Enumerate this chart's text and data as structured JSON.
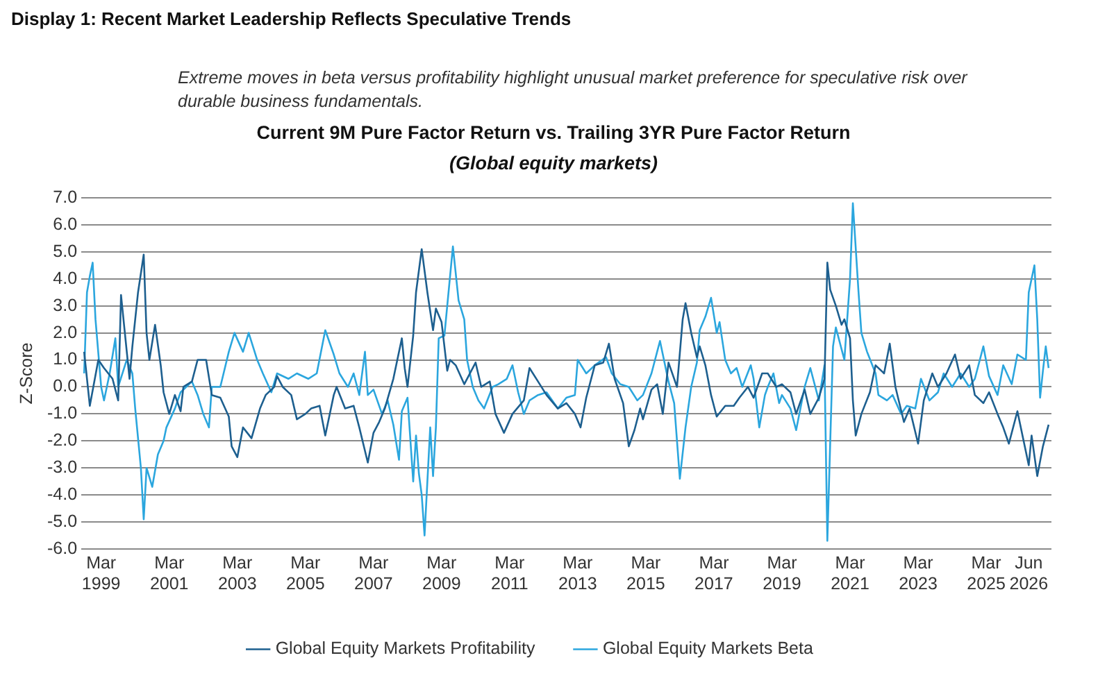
{
  "chart_data": {
    "type": "line",
    "title": "Display 1: Recent Market Leadership Reflects Speculative Trends",
    "subtitle": "Current 9M Pure Factor Return vs. Trailing 3YR Pure Factor Return",
    "annotations": [
      "Extreme moves in beta versus profitability highlight unusual market preference for speculative risk over durable business fundamentals.",
      "(Global equity markets)"
    ],
    "ylabel": "Z-Score",
    "xlim": [
      "1998-08",
      "2027-02"
    ],
    "xticks": [
      {
        "value": "1999-03",
        "label": "Mar 1999"
      },
      {
        "value": "2001-03",
        "label": "Mar 2001"
      },
      {
        "value": "2003-03",
        "label": "Mar 2003"
      },
      {
        "value": "2005-03",
        "label": "Mar 2005"
      },
      {
        "value": "2007-03",
        "label": "Mar 2007"
      },
      {
        "value": "2009-03",
        "label": "Mar 2009"
      },
      {
        "value": "2011-03",
        "label": "Mar 2011"
      },
      {
        "value": "2013-03",
        "label": "Mar 2013"
      },
      {
        "value": "2015-03",
        "label": "Mar 2015"
      },
      {
        "value": "2017-03",
        "label": "Mar 2017"
      },
      {
        "value": "2019-03",
        "label": "Mar 2019"
      },
      {
        "value": "2021-03",
        "label": "Mar 2021"
      },
      {
        "value": "2023-03",
        "label": "Mar 2023"
      },
      {
        "value": "2025-03",
        "label": "Mar 2025"
      },
      {
        "value": "2026-06",
        "label": "Jun 2026"
      }
    ],
    "ylim": [
      -6,
      7
    ],
    "yticks": [
      {
        "value": 7,
        "label": "7.0"
      },
      {
        "value": 6,
        "label": "6.0"
      },
      {
        "value": 5,
        "label": "5.0"
      },
      {
        "value": 4,
        "label": "4.0"
      },
      {
        "value": 3,
        "label": "3.0"
      },
      {
        "value": 2,
        "label": "2.0"
      },
      {
        "value": 1,
        "label": "1.0"
      },
      {
        "value": 0,
        "label": "0.0"
      },
      {
        "value": -1,
        "label": "-1.0"
      },
      {
        "value": -2,
        "label": "-2.0"
      },
      {
        "value": -3,
        "label": "-3.0"
      },
      {
        "value": -4,
        "label": "-4.0"
      },
      {
        "value": -5,
        "label": "-5.0"
      },
      {
        "value": -6,
        "label": "-6.0"
      }
    ],
    "grid": "y",
    "legend": "bottom",
    "series": [
      {
        "name": "Global Equity Markets Profitability",
        "color": "#1d5f8f",
        "x": [
          "1998-09",
          "1998-11",
          "1999-02",
          "1999-04",
          "1999-07",
          "1999-09",
          "1999-10",
          "2000-01",
          "2000-02",
          "2000-04",
          "2000-06",
          "2000-07",
          "2000-08",
          "2000-10",
          "2000-12",
          "2001-01",
          "2001-03",
          "2001-05",
          "2001-07",
          "2001-08",
          "2001-11",
          "2002-01",
          "2002-04",
          "2002-06",
          "2002-09",
          "2002-12",
          "2003-01",
          "2003-03",
          "2003-05",
          "2003-08",
          "2003-11",
          "2004-01",
          "2004-04",
          "2004-05",
          "2004-07",
          "2004-10",
          "2004-12",
          "2005-03",
          "2005-05",
          "2005-08",
          "2005-10",
          "2006-01",
          "2006-02",
          "2006-05",
          "2006-08",
          "2006-10",
          "2007-01",
          "2007-03",
          "2007-05",
          "2007-07",
          "2007-10",
          "2008-01",
          "2008-02",
          "2008-03",
          "2008-05",
          "2008-06",
          "2008-08",
          "2008-10",
          "2008-12",
          "2009-01",
          "2009-03",
          "2009-05",
          "2009-06",
          "2009-08",
          "2009-11",
          "2010-03",
          "2010-05",
          "2010-08",
          "2010-10",
          "2011-01",
          "2011-04",
          "2011-08",
          "2011-10",
          "2012-01",
          "2012-04",
          "2012-08",
          "2012-11",
          "2013-02",
          "2013-04",
          "2013-06",
          "2013-09",
          "2013-12",
          "2014-02",
          "2014-04",
          "2014-07",
          "2014-09",
          "2014-11",
          "2015-01",
          "2015-02",
          "2015-05",
          "2015-07",
          "2015-09",
          "2015-11",
          "2016-02",
          "2016-04",
          "2016-05",
          "2016-07",
          "2016-09",
          "2016-10",
          "2016-12",
          "2017-02",
          "2017-04",
          "2017-07",
          "2017-10",
          "2017-12",
          "2018-03",
          "2018-05",
          "2018-08",
          "2018-10",
          "2019-01",
          "2019-03",
          "2019-06",
          "2019-08",
          "2019-11",
          "2020-01",
          "2020-04",
          "2020-06",
          "2020-07",
          "2020-08",
          "2020-10",
          "2020-12",
          "2021-01",
          "2021-03",
          "2021-04",
          "2021-05",
          "2021-07",
          "2021-10",
          "2021-12",
          "2022-03",
          "2022-05",
          "2022-07",
          "2022-10",
          "2022-12",
          "2023-03",
          "2023-05",
          "2023-08",
          "2023-10",
          "2024-01",
          "2024-04",
          "2024-06",
          "2024-09",
          "2024-11",
          "2025-02",
          "2025-04",
          "2025-07",
          "2025-09",
          "2025-11",
          "2026-02",
          "2026-04",
          "2026-06",
          "2026-07",
          "2026-09",
          "2026-11",
          "2027-01"
        ],
        "values": [
          1.3,
          -0.7,
          1.0,
          0.7,
          0.3,
          -0.5,
          3.4,
          0.3,
          1.5,
          3.5,
          4.9,
          2.0,
          1.0,
          2.3,
          0.8,
          -0.2,
          -1.0,
          -0.3,
          -0.9,
          0.0,
          0.2,
          1.0,
          1.0,
          -0.3,
          -0.4,
          -1.1,
          -2.2,
          -2.6,
          -1.5,
          -1.9,
          -0.8,
          -0.3,
          0.0,
          0.4,
          0.0,
          -0.3,
          -1.2,
          -1.0,
          -0.8,
          -0.7,
          -1.8,
          -0.3,
          0.0,
          -0.8,
          -0.7,
          -1.5,
          -2.8,
          -1.7,
          -1.3,
          -0.8,
          0.3,
          1.8,
          0.7,
          0.0,
          1.9,
          3.5,
          5.1,
          3.5,
          2.1,
          2.9,
          2.4,
          0.6,
          1.0,
          0.8,
          0.1,
          0.9,
          0.0,
          0.2,
          -1.0,
          -1.7,
          -1.0,
          -0.5,
          0.7,
          0.2,
          -0.3,
          -0.8,
          -0.6,
          -1.0,
          -1.5,
          -0.4,
          0.8,
          0.9,
          1.6,
          0.3,
          -0.6,
          -2.2,
          -1.6,
          -0.8,
          -1.2,
          -0.1,
          0.1,
          -1.0,
          0.9,
          0.0,
          2.5,
          3.1,
          2.0,
          1.1,
          1.5,
          0.8,
          -0.3,
          -1.1,
          -0.7,
          -0.7,
          -0.4,
          0.0,
          -0.4,
          0.5,
          0.5,
          0.0,
          0.1,
          -0.2,
          -1.0,
          -0.1,
          -1.0,
          -0.4,
          0.3,
          4.6,
          3.6,
          3.0,
          2.3,
          2.5,
          1.8,
          -0.5,
          -1.8,
          -1.0,
          -0.2,
          0.8,
          0.5,
          1.6,
          0.0,
          -1.3,
          -0.8,
          -2.1,
          -0.5,
          0.5,
          0.0,
          0.5,
          1.2,
          0.3,
          0.8,
          -0.3,
          -0.6,
          -0.2,
          -1.0,
          -1.5,
          -2.1,
          -0.9,
          -1.9,
          -2.9,
          -1.8,
          -3.3,
          -2.2,
          -1.4
        ]
      },
      {
        "name": "Global Equity Markets Beta",
        "color": "#2ba6de",
        "x": [
          "1998-09",
          "1998-10",
          "1998-11",
          "1998-12",
          "1999-01",
          "1999-03",
          "1999-04",
          "1999-06",
          "1999-08",
          "1999-09",
          "1999-12",
          "2000-02",
          "2000-03",
          "2000-05",
          "2000-06",
          "2000-07",
          "2000-09",
          "2000-11",
          "2001-01",
          "2001-02",
          "2001-05",
          "2001-07",
          "2001-11",
          "2002-01",
          "2002-03",
          "2002-05",
          "2002-06",
          "2002-09",
          "2002-12",
          "2003-02",
          "2003-05",
          "2003-07",
          "2003-10",
          "2003-12",
          "2004-03",
          "2004-05",
          "2004-09",
          "2004-12",
          "2005-04",
          "2005-07",
          "2005-10",
          "2006-01",
          "2006-03",
          "2006-06",
          "2006-08",
          "2006-10",
          "2006-12",
          "2007-01",
          "2007-03",
          "2007-06",
          "2007-08",
          "2007-10",
          "2007-12",
          "2008-01",
          "2008-03",
          "2008-05",
          "2008-06",
          "2008-07",
          "2008-08",
          "2008-09",
          "2008-10",
          "2008-11",
          "2008-12",
          "2009-01",
          "2009-02",
          "2009-04",
          "2009-05",
          "2009-07",
          "2009-09",
          "2009-11",
          "2009-12",
          "2010-02",
          "2010-04",
          "2010-06",
          "2010-09",
          "2010-11",
          "2011-02",
          "2011-04",
          "2011-06",
          "2011-08",
          "2011-10",
          "2012-01",
          "2012-04",
          "2012-08",
          "2012-11",
          "2013-02",
          "2013-03",
          "2013-06",
          "2013-09",
          "2014-01",
          "2014-03",
          "2014-06",
          "2014-09",
          "2014-12",
          "2015-02",
          "2015-05",
          "2015-08",
          "2015-11",
          "2016-01",
          "2016-03",
          "2016-05",
          "2016-07",
          "2016-09",
          "2016-10",
          "2016-12",
          "2017-02",
          "2017-04",
          "2017-05",
          "2017-07",
          "2017-09",
          "2017-11",
          "2018-01",
          "2018-04",
          "2018-05",
          "2018-07",
          "2018-09",
          "2018-10",
          "2018-12",
          "2019-02",
          "2019-03",
          "2019-06",
          "2019-08",
          "2019-11",
          "2020-01",
          "2020-04",
          "2020-06",
          "2020-07",
          "2020-09",
          "2020-10",
          "2021-01",
          "2021-02",
          "2021-03",
          "2021-04",
          "2021-06",
          "2021-07",
          "2021-09",
          "2021-12",
          "2022-01",
          "2022-04",
          "2022-06",
          "2022-09",
          "2022-11",
          "2023-02",
          "2023-04",
          "2023-07",
          "2023-10",
          "2023-12",
          "2024-03",
          "2024-06",
          "2024-09",
          "2024-11",
          "2025-02",
          "2025-04",
          "2025-07",
          "2025-09",
          "2025-12",
          "2026-02",
          "2026-05",
          "2026-06",
          "2026-08",
          "2026-09",
          "2026-10",
          "2026-11",
          "2026-12",
          "2027-01"
        ],
        "values": [
          0.5,
          3.5,
          4.1,
          4.6,
          2.5,
          0.0,
          -0.5,
          0.5,
          1.8,
          0.0,
          1.0,
          0.5,
          -0.8,
          -3.0,
          -4.9,
          -3.0,
          -3.7,
          -2.5,
          -2.0,
          -1.5,
          -0.8,
          -0.2,
          0.2,
          -0.3,
          -1.0,
          -1.5,
          0.0,
          0.0,
          1.3,
          2.0,
          1.3,
          2.0,
          1.0,
          0.5,
          -0.2,
          0.5,
          0.3,
          0.5,
          0.3,
          0.5,
          2.1,
          1.2,
          0.5,
          0.0,
          0.5,
          -0.3,
          1.3,
          -0.3,
          -0.1,
          -1.0,
          -0.5,
          -1.4,
          -2.7,
          -0.9,
          -0.4,
          -3.5,
          -1.8,
          -3.2,
          -4.0,
          -5.5,
          -3.5,
          -1.5,
          -3.3,
          -1.5,
          1.8,
          1.9,
          3.0,
          5.2,
          3.2,
          2.5,
          1.0,
          0.0,
          -0.5,
          -0.8,
          0.0,
          0.1,
          0.3,
          0.8,
          -0.2,
          -1.0,
          -0.5,
          -0.3,
          -0.2,
          -0.8,
          -0.4,
          -0.3,
          1.0,
          0.5,
          0.8,
          1.1,
          0.5,
          0.1,
          0.0,
          -0.5,
          -0.3,
          0.5,
          1.7,
          0.2,
          -0.6,
          -3.4,
          -1.5,
          0.0,
          0.9,
          2.1,
          2.6,
          3.3,
          2.0,
          2.4,
          1.0,
          0.5,
          0.7,
          0.0,
          0.8,
          0.3,
          -1.5,
          -0.3,
          0.0,
          0.5,
          -0.6,
          -0.3,
          -0.8,
          -1.6,
          0.0,
          0.7,
          -0.5,
          0.8,
          -5.7,
          1.5,
          2.2,
          1.0,
          2.5,
          4.0,
          6.8,
          3.5,
          2.0,
          1.3,
          0.5,
          -0.3,
          -0.5,
          -0.3,
          -1.0,
          -0.7,
          -0.8,
          0.3,
          -0.5,
          -0.2,
          0.5,
          0.0,
          0.5,
          0.0,
          0.3,
          1.5,
          0.4,
          -0.3,
          0.8,
          0.1,
          1.2,
          1.0,
          3.5,
          4.5,
          2.5,
          -0.4,
          0.6,
          1.5,
          0.7
        ]
      }
    ]
  }
}
